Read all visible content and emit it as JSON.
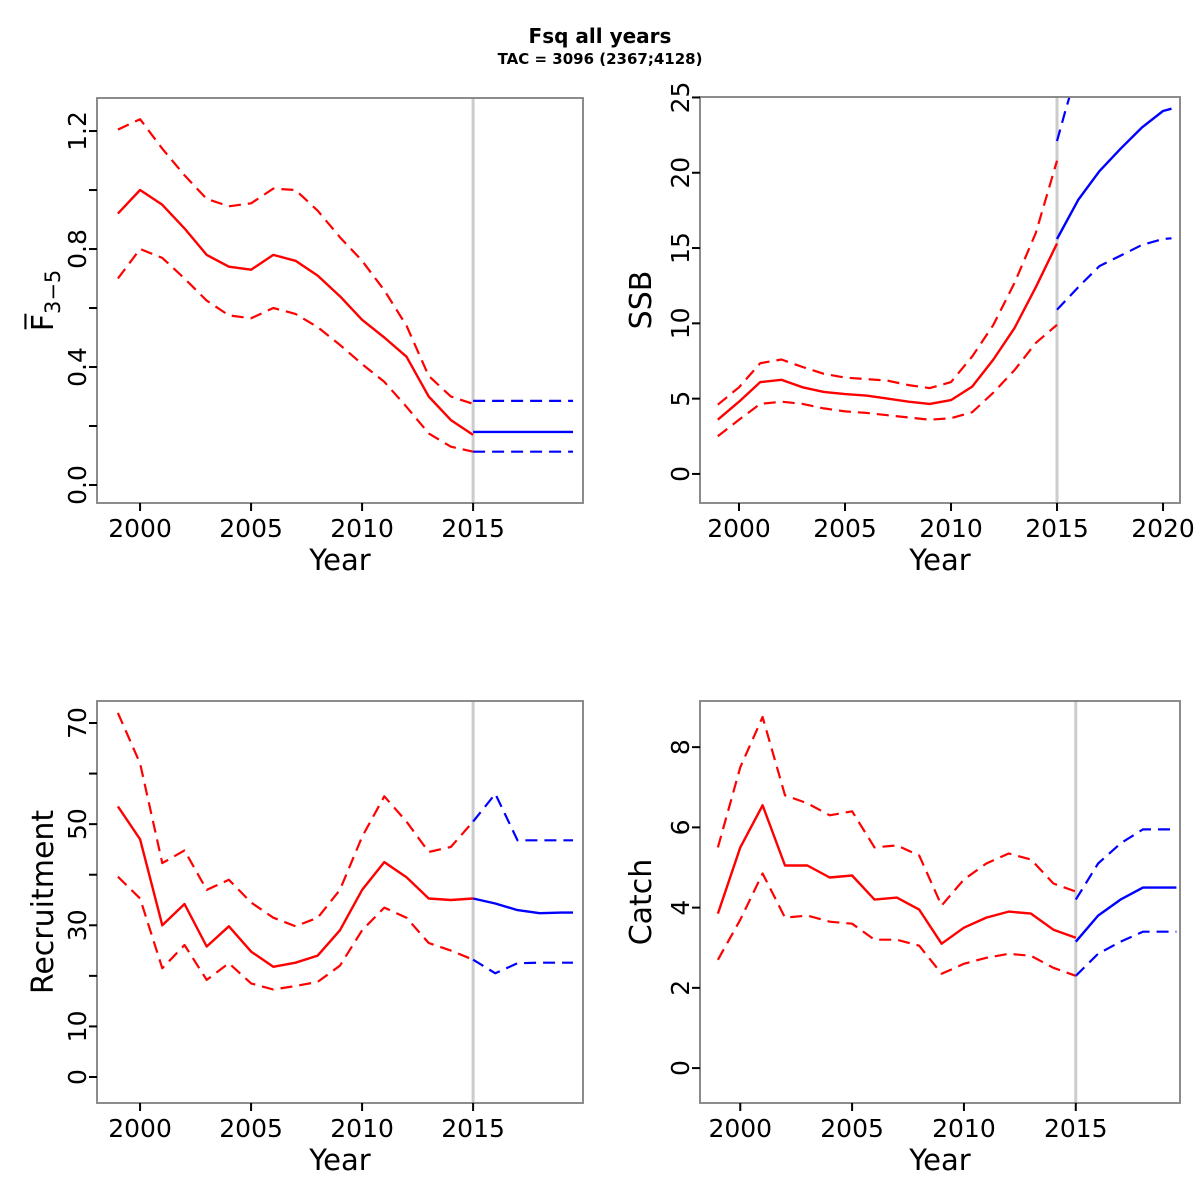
{
  "figure": {
    "title": "Fsq all years",
    "subtitle": "TAC = 3096 (2367;4128)"
  },
  "colors": {
    "history": "#ff0000",
    "forecast": "#0000ff",
    "divider": "#cccccc",
    "frame": "#7f7f7f",
    "text": "#000000"
  },
  "chart_data": [
    {
      "type": "line",
      "panel": "fbar",
      "ylabel_parts": [
        {
          "text": "F̅"
        },
        {
          "text": "3−5",
          "sub": true
        }
      ],
      "xlabel": "Year",
      "xlim": [
        1998.06,
        2019.95
      ],
      "ylim": [
        -0.061,
        1.312
      ],
      "divider_x": 2015,
      "xticks": [
        {
          "v": 2000,
          "l": "2000"
        },
        {
          "v": 2005,
          "l": "2005"
        },
        {
          "v": 2010,
          "l": "2010"
        },
        {
          "v": 2015,
          "l": "2015"
        }
      ],
      "yticks": [
        {
          "v": 0,
          "l": "0.0"
        },
        {
          "v": 0.2
        },
        {
          "v": 0.4,
          "l": "0.4"
        },
        {
          "v": 0.6
        },
        {
          "v": 0.8,
          "l": "0.8"
        },
        {
          "v": 1.0
        },
        {
          "v": 1.2,
          "l": "1.2"
        }
      ],
      "series": [
        {
          "name": "median-history",
          "role": "history",
          "dash": false,
          "x": [
            1999,
            2000,
            2001,
            2002,
            2003,
            2004,
            2005,
            2006,
            2007,
            2008,
            2009,
            2010,
            2011,
            2012,
            2013,
            2014,
            2015
          ],
          "y": [
            0.92,
            1.0,
            0.95,
            0.87,
            0.78,
            0.74,
            0.73,
            0.78,
            0.76,
            0.71,
            0.64,
            0.56,
            0.5,
            0.435,
            0.3,
            0.22,
            0.17
          ]
        },
        {
          "name": "ci-high-history",
          "role": "history",
          "dash": true,
          "x": [
            1999,
            2000,
            2001,
            2002,
            2003,
            2004,
            2005,
            2006,
            2007,
            2008,
            2009,
            2010,
            2011,
            2012,
            2013,
            2014,
            2015
          ],
          "y": [
            1.205,
            1.24,
            1.14,
            1.05,
            0.97,
            0.945,
            0.955,
            1.005,
            1.0,
            0.93,
            0.84,
            0.76,
            0.66,
            0.54,
            0.37,
            0.3,
            0.275
          ]
        },
        {
          "name": "ci-low-history",
          "role": "history",
          "dash": true,
          "x": [
            1999,
            2000,
            2001,
            2002,
            2003,
            2004,
            2005,
            2006,
            2007,
            2008,
            2009,
            2010,
            2011,
            2012,
            2013,
            2014,
            2015
          ],
          "y": [
            0.7,
            0.8,
            0.77,
            0.7,
            0.625,
            0.575,
            0.565,
            0.6,
            0.58,
            0.535,
            0.475,
            0.41,
            0.35,
            0.265,
            0.175,
            0.13,
            0.113
          ]
        },
        {
          "name": "median-forecast",
          "role": "forecast",
          "dash": false,
          "x": [
            2015,
            2016,
            2017,
            2018,
            2019,
            2019.5
          ],
          "y": [
            0.18,
            0.18,
            0.18,
            0.18,
            0.18,
            0.18
          ]
        },
        {
          "name": "ci-high-forecast",
          "role": "forecast",
          "dash": true,
          "x": [
            2015,
            2016,
            2017,
            2018,
            2019,
            2019.5
          ],
          "y": [
            0.285,
            0.285,
            0.285,
            0.285,
            0.285,
            0.285
          ]
        },
        {
          "name": "ci-low-forecast",
          "role": "forecast",
          "dash": true,
          "x": [
            2015,
            2016,
            2017,
            2018,
            2019,
            2019.5
          ],
          "y": [
            0.113,
            0.113,
            0.113,
            0.113,
            0.113,
            0.113
          ]
        }
      ]
    },
    {
      "type": "line",
      "panel": "ssb",
      "ylabel_parts": [
        {
          "text": "SSB"
        }
      ],
      "xlabel": "Year",
      "xlim": [
        1998.16,
        2020.8
      ],
      "ylim": [
        -1.93,
        25.03
      ],
      "divider_x": 2015,
      "xticks": [
        {
          "v": 2000,
          "l": "2000"
        },
        {
          "v": 2005,
          "l": "2005"
        },
        {
          "v": 2010,
          "l": "2010"
        },
        {
          "v": 2015,
          "l": "2015"
        },
        {
          "v": 2020,
          "l": "2020"
        }
      ],
      "yticks": [
        {
          "v": 0,
          "l": "0"
        },
        {
          "v": 5,
          "l": "5"
        },
        {
          "v": 10,
          "l": "10"
        },
        {
          "v": 15,
          "l": "15"
        },
        {
          "v": 20,
          "l": "20"
        },
        {
          "v": 25,
          "l": "25"
        }
      ],
      "series": [
        {
          "name": "median-history",
          "role": "history",
          "dash": false,
          "x": [
            1999,
            2000,
            2001,
            2002,
            2003,
            2004,
            2005,
            2006,
            2007,
            2008,
            2009,
            2010,
            2011,
            2012,
            2013,
            2014,
            2015
          ],
          "y": [
            3.6,
            4.8,
            6.1,
            6.25,
            5.75,
            5.45,
            5.3,
            5.2,
            5.0,
            4.8,
            4.65,
            4.9,
            5.8,
            7.6,
            9.7,
            12.4,
            15.3
          ]
        },
        {
          "name": "ci-high-history",
          "role": "history",
          "dash": true,
          "x": [
            1999,
            2000,
            2001,
            2002,
            2003,
            2004,
            2005,
            2006,
            2007,
            2008,
            2009,
            2010,
            2011,
            2012,
            2013,
            2014,
            2015
          ],
          "y": [
            4.6,
            5.75,
            7.35,
            7.6,
            7.1,
            6.65,
            6.4,
            6.3,
            6.2,
            5.9,
            5.7,
            6.1,
            7.8,
            9.9,
            12.7,
            16.0,
            20.8
          ]
        },
        {
          "name": "ci-low-history",
          "role": "history",
          "dash": true,
          "x": [
            1999,
            2000,
            2001,
            2002,
            2003,
            2004,
            2005,
            2006,
            2007,
            2008,
            2009,
            2010,
            2011,
            2012,
            2013,
            2014,
            2015
          ],
          "y": [
            2.5,
            3.6,
            4.65,
            4.8,
            4.65,
            4.35,
            4.15,
            4.05,
            3.9,
            3.75,
            3.6,
            3.7,
            4.1,
            5.4,
            6.9,
            8.7,
            9.9
          ]
        },
        {
          "name": "median-forecast",
          "role": "forecast",
          "dash": false,
          "x": [
            2015,
            2016,
            2017,
            2018,
            2019,
            2020,
            2020.4
          ],
          "y": [
            15.6,
            18.2,
            20.1,
            21.6,
            23.0,
            24.1,
            24.25
          ]
        },
        {
          "name": "ci-high-forecast",
          "role": "forecast",
          "dash": true,
          "x": [
            2015,
            2015.35,
            2015.7
          ],
          "y": [
            22.1,
            23.9,
            25.6
          ]
        },
        {
          "name": "ci-low-forecast",
          "role": "forecast",
          "dash": true,
          "x": [
            2015,
            2016,
            2017,
            2018,
            2019,
            2020,
            2020.4
          ],
          "y": [
            10.9,
            12.4,
            13.8,
            14.5,
            15.2,
            15.6,
            15.65
          ]
        }
      ]
    },
    {
      "type": "line",
      "panel": "recruitment",
      "ylabel_parts": [
        {
          "text": "Recruitment"
        }
      ],
      "xlabel": "Year",
      "xlim": [
        1998.06,
        2019.95
      ],
      "ylim": [
        -5.14,
        74.35
      ],
      "divider_x": 2015,
      "xticks": [
        {
          "v": 2000,
          "l": "2000"
        },
        {
          "v": 2005,
          "l": "2005"
        },
        {
          "v": 2010,
          "l": "2010"
        },
        {
          "v": 2015,
          "l": "2015"
        }
      ],
      "yticks": [
        {
          "v": 0,
          "l": "0"
        },
        {
          "v": 10,
          "l": "10"
        },
        {
          "v": 20
        },
        {
          "v": 30,
          "l": "30"
        },
        {
          "v": 40
        },
        {
          "v": 50,
          "l": "50"
        },
        {
          "v": 60
        },
        {
          "v": 70,
          "l": "70"
        }
      ],
      "series": [
        {
          "name": "median-history",
          "role": "history",
          "dash": false,
          "x": [
            1999,
            2000,
            2001,
            2002,
            2003,
            2004,
            2005,
            2006,
            2007,
            2008,
            2009,
            2010,
            2011,
            2012,
            2013,
            2014,
            2015
          ],
          "y": [
            53.5,
            47,
            30,
            34.2,
            25.8,
            29.8,
            24.8,
            21.8,
            22.6,
            24,
            29,
            37,
            42.5,
            39.5,
            35.3,
            35,
            35.3
          ]
        },
        {
          "name": "ci-high-history",
          "role": "history",
          "dash": true,
          "x": [
            1999,
            2000,
            2001,
            2002,
            2003,
            2004,
            2005,
            2006,
            2007,
            2008,
            2009,
            2010,
            2011,
            2012,
            2013,
            2014,
            2015
          ],
          "y": [
            72,
            62,
            42.3,
            44.8,
            37,
            39,
            34.5,
            31.5,
            29.8,
            31.5,
            37,
            47.5,
            55.5,
            50.5,
            44.5,
            45.5,
            50.5
          ]
        },
        {
          "name": "ci-low-history",
          "role": "history",
          "dash": true,
          "x": [
            1999,
            2000,
            2001,
            2002,
            2003,
            2004,
            2005,
            2006,
            2007,
            2008,
            2009,
            2010,
            2011,
            2012,
            2013,
            2014,
            2015
          ],
          "y": [
            39.6,
            35.3,
            21.5,
            26.1,
            19.2,
            22.5,
            18.5,
            17.3,
            18,
            18.8,
            22,
            29,
            33.5,
            31.5,
            26.5,
            25,
            23.2
          ]
        },
        {
          "name": "median-forecast",
          "role": "forecast",
          "dash": false,
          "x": [
            2015,
            2016,
            2017,
            2018,
            2019,
            2019.5
          ],
          "y": [
            35.3,
            34.3,
            33.0,
            32.4,
            32.5,
            32.5
          ]
        },
        {
          "name": "ci-high-forecast",
          "role": "forecast",
          "dash": true,
          "x": [
            2015,
            2016,
            2017,
            2018,
            2019,
            2019.5
          ],
          "y": [
            50.5,
            56,
            46.8,
            46.8,
            46.8,
            46.8
          ]
        },
        {
          "name": "ci-low-forecast",
          "role": "forecast",
          "dash": true,
          "x": [
            2015,
            2016,
            2017,
            2018,
            2019,
            2019.5
          ],
          "y": [
            23.2,
            20.5,
            22.5,
            22.6,
            22.6,
            22.6
          ]
        }
      ]
    },
    {
      "type": "line",
      "panel": "catch",
      "ylabel_parts": [
        {
          "text": "Catch"
        }
      ],
      "xlabel": "Year",
      "xlim": [
        1998.2,
        2019.66
      ],
      "ylim": [
        -0.87,
        9.15
      ],
      "divider_x": 2015,
      "xticks": [
        {
          "v": 2000,
          "l": "2000"
        },
        {
          "v": 2005,
          "l": "2005"
        },
        {
          "v": 2010,
          "l": "2010"
        },
        {
          "v": 2015,
          "l": "2015"
        }
      ],
      "yticks": [
        {
          "v": 0,
          "l": "0"
        },
        {
          "v": 2,
          "l": "2"
        },
        {
          "v": 4,
          "l": "4"
        },
        {
          "v": 6,
          "l": "6"
        },
        {
          "v": 8,
          "l": "8"
        }
      ],
      "series": [
        {
          "name": "median-history",
          "role": "history",
          "dash": false,
          "x": [
            1999,
            2000,
            2001,
            2002,
            2003,
            2004,
            2005,
            2006,
            2007,
            2008,
            2009,
            2010,
            2011,
            2012,
            2013,
            2014,
            2015
          ],
          "y": [
            3.85,
            5.5,
            6.55,
            5.05,
            5.05,
            4.75,
            4.8,
            4.2,
            4.25,
            3.95,
            3.1,
            3.5,
            3.75,
            3.9,
            3.85,
            3.45,
            3.25
          ]
        },
        {
          "name": "ci-high-history",
          "role": "history",
          "dash": true,
          "x": [
            1999,
            2000,
            2001,
            2002,
            2003,
            2004,
            2005,
            2006,
            2007,
            2008,
            2009,
            2010,
            2011,
            2012,
            2013,
            2014,
            2015
          ],
          "y": [
            5.5,
            7.5,
            8.75,
            6.8,
            6.6,
            6.3,
            6.4,
            5.5,
            5.55,
            5.3,
            4.05,
            4.7,
            5.1,
            5.35,
            5.2,
            4.6,
            4.4
          ]
        },
        {
          "name": "ci-low-history",
          "role": "history",
          "dash": true,
          "x": [
            1999,
            2000,
            2001,
            2002,
            2003,
            2004,
            2005,
            2006,
            2007,
            2008,
            2009,
            2010,
            2011,
            2012,
            2013,
            2014,
            2015
          ],
          "y": [
            2.7,
            3.7,
            4.85,
            3.75,
            3.8,
            3.65,
            3.6,
            3.2,
            3.2,
            3.05,
            2.35,
            2.6,
            2.75,
            2.85,
            2.8,
            2.5,
            2.3
          ]
        },
        {
          "name": "median-forecast",
          "role": "forecast",
          "dash": false,
          "x": [
            2015,
            2016,
            2017,
            2018,
            2019,
            2019.5
          ],
          "y": [
            3.15,
            3.8,
            4.2,
            4.5,
            4.5,
            4.5
          ]
        },
        {
          "name": "ci-high-forecast",
          "role": "forecast",
          "dash": true,
          "x": [
            2015,
            2016,
            2017,
            2018,
            2019,
            2019.5
          ],
          "y": [
            4.2,
            5.1,
            5.6,
            5.95,
            5.95,
            5.95
          ]
        },
        {
          "name": "ci-low-forecast",
          "role": "forecast",
          "dash": true,
          "x": [
            2015,
            2016,
            2017,
            2018,
            2019,
            2019.5
          ],
          "y": [
            2.3,
            2.85,
            3.15,
            3.4,
            3.4,
            3.4
          ]
        }
      ]
    }
  ]
}
